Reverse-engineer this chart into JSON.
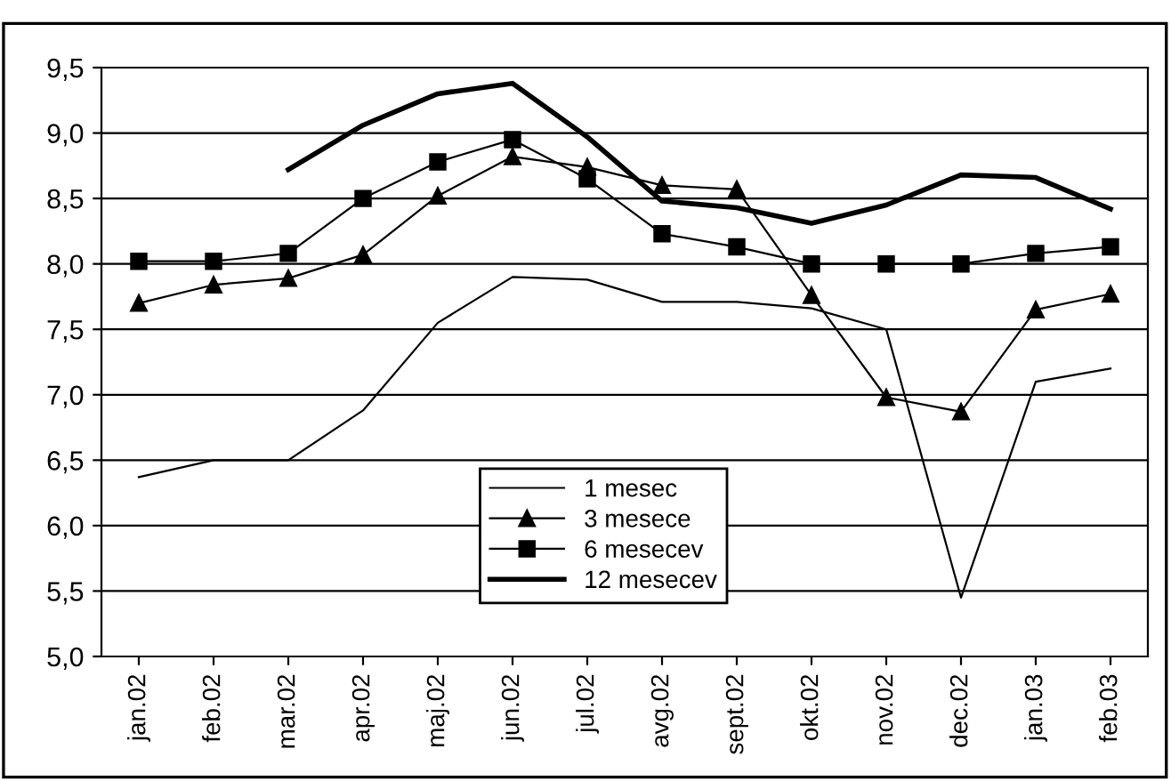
{
  "chart_data": {
    "type": "line",
    "categories": [
      "jan.02",
      "feb.02",
      "mar.02",
      "apr.02",
      "maj.02",
      "jun.02",
      "jul.02",
      "avg.02",
      "sept.02",
      "okt.02",
      "nov.02",
      "dec.02",
      "jan.03",
      "feb.03"
    ],
    "series": [
      {
        "name": "1 mesec",
        "color": "#000000",
        "marker": "none",
        "values": [
          6.37,
          6.5,
          6.5,
          6.88,
          7.55,
          7.9,
          7.88,
          7.71,
          7.71,
          7.66,
          7.5,
          5.45,
          7.1,
          7.2
        ]
      },
      {
        "name": "3 mesece",
        "color": "#000000",
        "marker": "triangle",
        "values": [
          7.7,
          7.84,
          7.89,
          8.07,
          8.52,
          8.82,
          8.74,
          8.6,
          8.57,
          7.76,
          6.98,
          6.87,
          7.65,
          7.77
        ]
      },
      {
        "name": "6 mesecev",
        "color": "#000000",
        "marker": "square",
        "values": [
          8.02,
          8.02,
          8.08,
          8.5,
          8.78,
          8.95,
          8.65,
          8.23,
          8.13,
          8.0,
          8.0,
          8.0,
          8.08,
          8.13
        ]
      },
      {
        "name": "12 mesecev",
        "color": "#000000",
        "marker": "none",
        "values": [
          null,
          null,
          8.72,
          9.06,
          9.3,
          9.38,
          8.97,
          8.48,
          8.43,
          8.31,
          8.45,
          8.68,
          8.66,
          8.42
        ]
      }
    ],
    "ylim": [
      5.0,
      9.5
    ],
    "yticks": [
      {
        "value": 5.0,
        "label": "5,0"
      },
      {
        "value": 5.5,
        "label": "5,5"
      },
      {
        "value": 6.0,
        "label": "6,0"
      },
      {
        "value": 6.5,
        "label": "6,5"
      },
      {
        "value": 7.0,
        "label": "7,0"
      },
      {
        "value": 7.5,
        "label": "7,5"
      },
      {
        "value": 8.0,
        "label": "8,0"
      },
      {
        "value": 8.5,
        "label": "8,5"
      },
      {
        "value": 9.0,
        "label": "9,0"
      },
      {
        "value": 9.5,
        "label": "9,5"
      }
    ],
    "grid": "y",
    "legend": "bottom center",
    "line_style": "solid"
  }
}
